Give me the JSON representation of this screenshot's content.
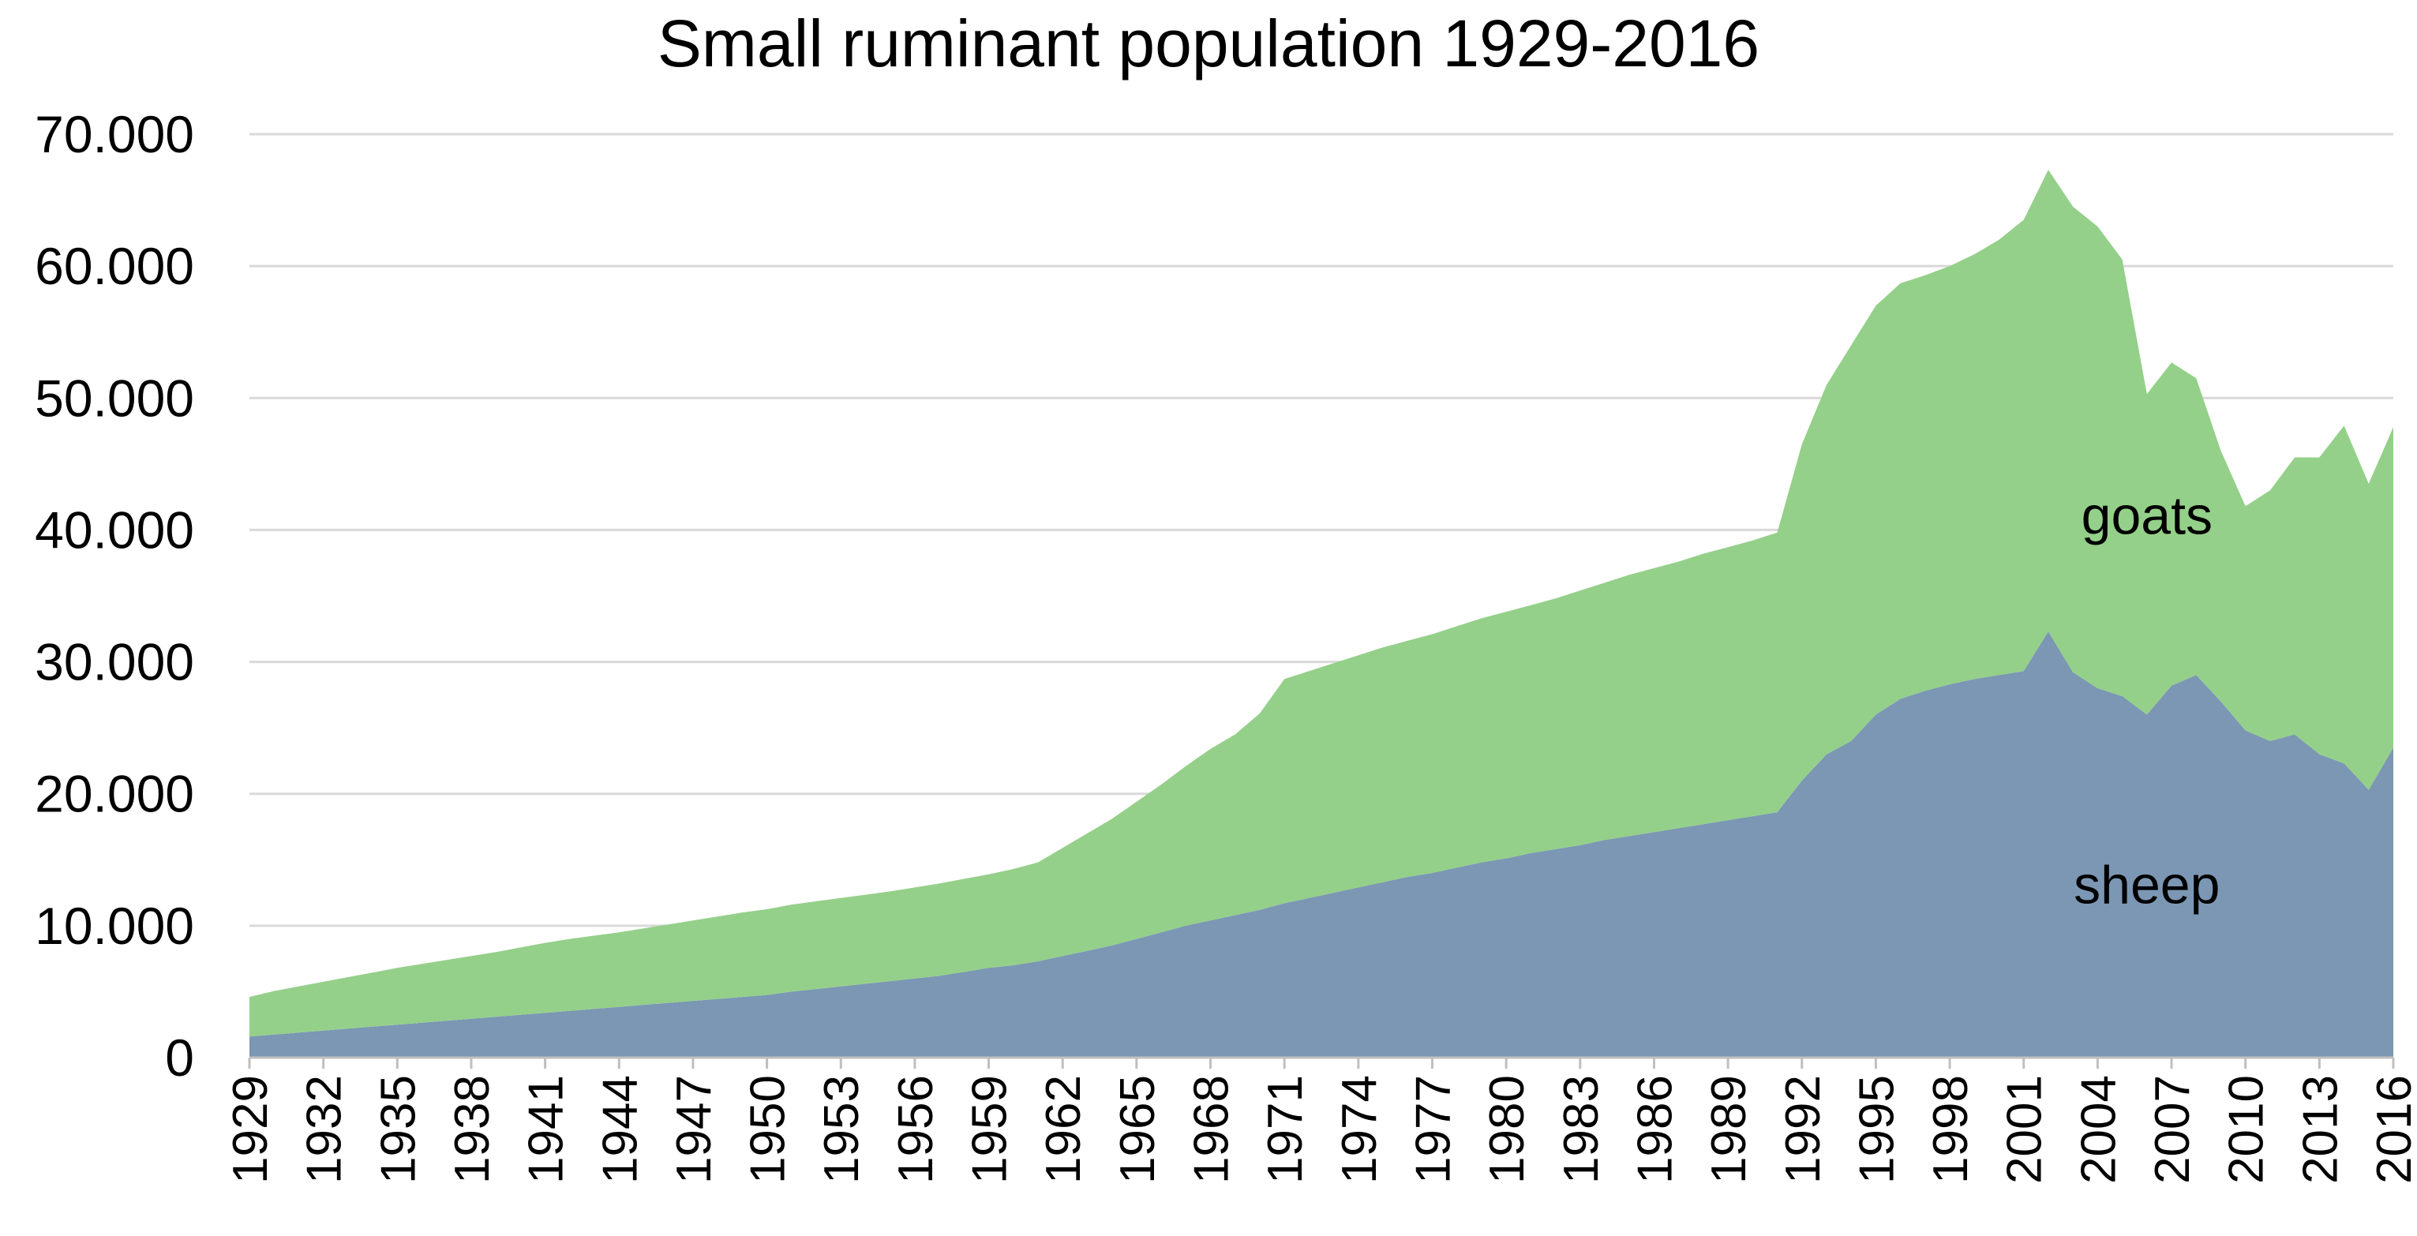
{
  "chart_data": {
    "type": "area",
    "stacked": true,
    "title": "Small ruminant population 1929-2016",
    "xlabel": "",
    "ylabel": "",
    "ylim": [
      0,
      70000
    ],
    "yticks": [
      0,
      10000,
      20000,
      30000,
      40000,
      50000,
      60000,
      70000
    ],
    "ytick_labels": [
      "0",
      "10.000",
      "20.000",
      "30.000",
      "40.000",
      "50.000",
      "60.000",
      "70.000"
    ],
    "x": [
      1929,
      1930,
      1931,
      1932,
      1933,
      1934,
      1935,
      1936,
      1937,
      1938,
      1939,
      1940,
      1941,
      1942,
      1943,
      1944,
      1945,
      1946,
      1947,
      1948,
      1949,
      1950,
      1951,
      1952,
      1953,
      1954,
      1955,
      1956,
      1957,
      1958,
      1959,
      1960,
      1961,
      1962,
      1963,
      1964,
      1965,
      1966,
      1967,
      1968,
      1969,
      1970,
      1971,
      1972,
      1973,
      1974,
      1975,
      1976,
      1977,
      1978,
      1979,
      1980,
      1981,
      1982,
      1983,
      1984,
      1985,
      1986,
      1987,
      1988,
      1989,
      1990,
      1991,
      1992,
      1993,
      1994,
      1995,
      1996,
      1997,
      1998,
      1999,
      2000,
      2001,
      2002,
      2003,
      2004,
      2005,
      2006,
      2007,
      2008,
      2009,
      2010,
      2011,
      2012,
      2013,
      2014,
      2015,
      2016
    ],
    "xtick_labels": [
      "1929",
      "1932",
      "1935",
      "1938",
      "1941",
      "1944",
      "1947",
      "1950",
      "1953",
      "1956",
      "1959",
      "1962",
      "1965",
      "1968",
      "1971",
      "1974",
      "1977",
      "1980",
      "1983",
      "1986",
      "1989",
      "1992",
      "1995",
      "1998",
      "2001",
      "2004",
      "2007",
      "2010",
      "2013",
      "2016"
    ],
    "legend": "none",
    "grid": "horizontal",
    "series": [
      {
        "name": "sheep",
        "label": "sheep",
        "color": "#7b97b4",
        "values": [
          1600,
          1750,
          1900,
          2050,
          2200,
          2350,
          2500,
          2650,
          2800,
          2950,
          3100,
          3250,
          3400,
          3550,
          3700,
          3850,
          4000,
          4150,
          4300,
          4450,
          4600,
          4750,
          5000,
          5200,
          5400,
          5600,
          5800,
          6000,
          6200,
          6500,
          6800,
          7000,
          7300,
          7700,
          8100,
          8500,
          9000,
          9500,
          10000,
          10400,
          10800,
          11200,
          11700,
          12100,
          12500,
          12900,
          13300,
          13700,
          14000,
          14400,
          14800,
          15100,
          15500,
          15800,
          16100,
          16500,
          16800,
          17100,
          17400,
          17700,
          18000,
          18300,
          18600,
          21000,
          23000,
          24000,
          26000,
          27200,
          27800,
          28300,
          28700,
          29000,
          29300,
          32300,
          29200,
          28000,
          27400,
          26000,
          28200,
          29000,
          27000,
          24800,
          24000,
          24500,
          23000,
          22300,
          20300,
          23500
        ]
      },
      {
        "name": "goats",
        "label": "goats",
        "color": "#94d089",
        "values": [
          3000,
          3300,
          3500,
          3700,
          3900,
          4100,
          4300,
          4450,
          4600,
          4750,
          4900,
          5100,
          5300,
          5450,
          5550,
          5650,
          5800,
          5950,
          6100,
          6250,
          6400,
          6500,
          6600,
          6650,
          6700,
          6750,
          6800,
          6900,
          7000,
          7050,
          7100,
          7300,
          7500,
          8200,
          8900,
          9600,
          10400,
          11200,
          12100,
          13000,
          13700,
          14900,
          17000,
          17200,
          17400,
          17600,
          17800,
          17900,
          18100,
          18300,
          18500,
          18700,
          18800,
          19000,
          19300,
          19500,
          19800,
          20000,
          20200,
          20500,
          20700,
          20900,
          21200,
          25500,
          28000,
          30000,
          31000,
          31500,
          31500,
          31700,
          32200,
          33000,
          34200,
          35000,
          35300,
          35000,
          33100,
          24300,
          24500,
          22500,
          19000,
          17000,
          19000,
          21000,
          22500,
          25600,
          23200,
          24300
        ]
      }
    ]
  }
}
